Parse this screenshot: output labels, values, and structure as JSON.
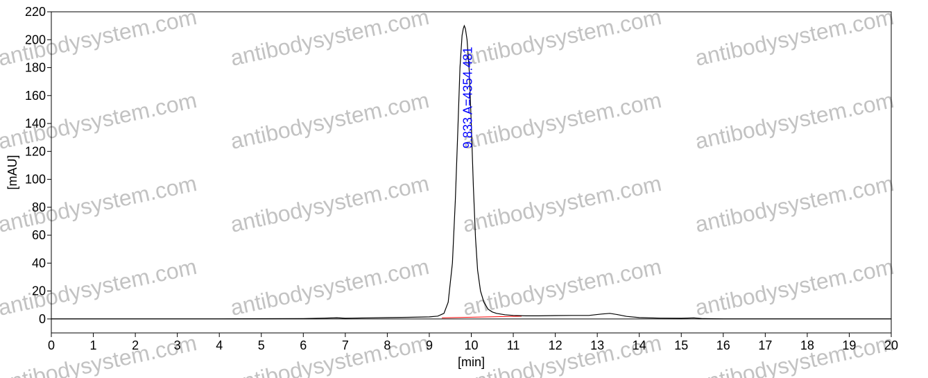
{
  "chart_data": {
    "type": "line",
    "title": "",
    "xlabel": "[min]",
    "ylabel": "[mAU]",
    "xlim": [
      0,
      20
    ],
    "ylim": [
      -10,
      220
    ],
    "x_ticks": [
      0,
      1,
      2,
      3,
      4,
      5,
      6,
      7,
      8,
      9,
      10,
      11,
      12,
      13,
      14,
      15,
      16,
      17,
      18,
      19,
      20
    ],
    "y_ticks": [
      0,
      20,
      40,
      60,
      80,
      100,
      120,
      140,
      160,
      180,
      200,
      220
    ],
    "grid": false,
    "legend": "none",
    "colors": {
      "trace": "#000000",
      "baseline": "#ff0000",
      "zero_line": "#000000",
      "peak_label": "#0000ff"
    },
    "series": [
      {
        "x": [
          0,
          1,
          2,
          3,
          4,
          5,
          6,
          6.5,
          6.8,
          7,
          7.5,
          8,
          8.5,
          9,
          9.2,
          9.35,
          9.45,
          9.55,
          9.62,
          9.68,
          9.73,
          9.78,
          9.81,
          9.833,
          9.86,
          9.9,
          9.95,
          10.0,
          10.05,
          10.1,
          10.15,
          10.22,
          10.3,
          10.4,
          10.5,
          10.6,
          10.8,
          11,
          11.3,
          11.6,
          12,
          12.4,
          12.8,
          13.1,
          13.3,
          13.5,
          13.7,
          14,
          14.5,
          15,
          15.3,
          15.5,
          16,
          17,
          18,
          19,
          20
        ],
        "y": [
          0.1,
          0.1,
          0.1,
          0.1,
          0.1,
          0.2,
          0.3,
          0.6,
          0.9,
          0.5,
          0.8,
          1.0,
          1.2,
          1.5,
          2.0,
          4.0,
          12,
          40,
          85,
          135,
          180,
          203,
          208,
          210,
          208,
          200,
          178,
          140,
          95,
          58,
          35,
          20,
          12,
          7,
          5,
          4,
          3,
          2.5,
          2.2,
          2.2,
          2.4,
          2.5,
          2.5,
          3.5,
          4.0,
          3.0,
          1.8,
          1.0,
          0.6,
          0.5,
          0.8,
          0.3,
          0.1,
          0.1,
          0.1,
          0.1,
          0.1
        ]
      }
    ],
    "baseline_segment": {
      "x": [
        9.3,
        11.2
      ],
      "y": [
        0.8,
        2.0
      ]
    },
    "peak_annotation": {
      "text": "9.833 A=4354.481",
      "x": 9.833,
      "y": 210
    },
    "watermark": "antibodysystem.com"
  }
}
